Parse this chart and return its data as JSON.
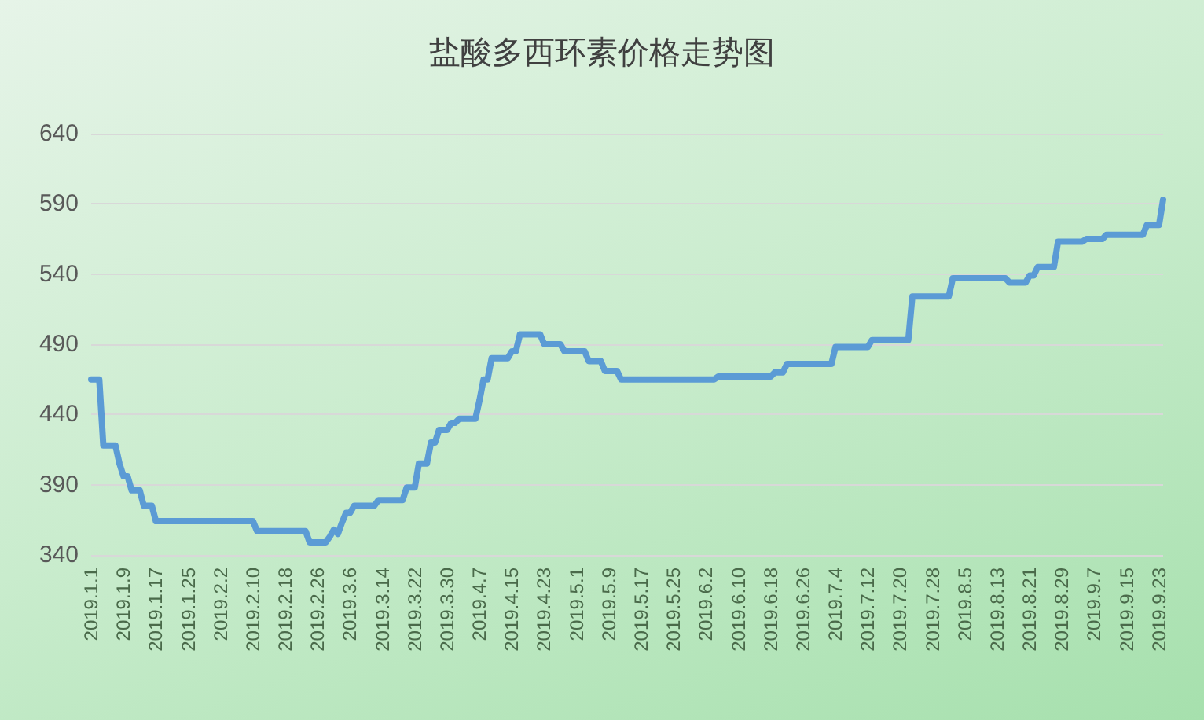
{
  "chart_data": {
    "type": "line",
    "title": "盐酸多西环素价格走势图",
    "categories": [
      "2019.1.1",
      null,
      null,
      null,
      null,
      null,
      null,
      null,
      "2019.1.9",
      null,
      null,
      null,
      null,
      null,
      null,
      null,
      "2019.1.17",
      null,
      null,
      null,
      null,
      null,
      null,
      null,
      "2019.1.25",
      null,
      null,
      null,
      null,
      null,
      null,
      null,
      "2019.2.2",
      null,
      null,
      null,
      null,
      null,
      null,
      null,
      "2019.2.10",
      null,
      null,
      null,
      null,
      null,
      null,
      null,
      "2019.2.18",
      null,
      null,
      null,
      null,
      null,
      null,
      null,
      "2019.2.26",
      null,
      null,
      null,
      null,
      null,
      null,
      null,
      "2019.3.6",
      null,
      null,
      null,
      null,
      null,
      null,
      null,
      "2019.3.14",
      null,
      null,
      null,
      null,
      null,
      null,
      null,
      "2019.3.22",
      null,
      null,
      null,
      null,
      null,
      null,
      null,
      "2019.3.30",
      null,
      null,
      null,
      null,
      null,
      null,
      null,
      "2019.4.7",
      null,
      null,
      null,
      null,
      null,
      null,
      null,
      "2019.4.15",
      null,
      null,
      null,
      null,
      null,
      null,
      null,
      "2019.4.23",
      null,
      null,
      null,
      null,
      null,
      null,
      null,
      "2019.5.1",
      null,
      null,
      null,
      null,
      null,
      null,
      null,
      "2019.5.9",
      null,
      null,
      null,
      null,
      null,
      null,
      null,
      "2019.5.17",
      null,
      null,
      null,
      null,
      null,
      null,
      null,
      "2019.5.25",
      null,
      null,
      null,
      null,
      null,
      null,
      null,
      "2019.6.2",
      null,
      null,
      null,
      null,
      null,
      null,
      null,
      "2019.6.10",
      null,
      null,
      null,
      null,
      null,
      null,
      null,
      "2019.6.18",
      null,
      null,
      null,
      null,
      null,
      null,
      null,
      "2019.6.26",
      null,
      null,
      null,
      null,
      null,
      null,
      null,
      "2019.7.4",
      null,
      null,
      null,
      null,
      null,
      null,
      null,
      "2019.7.12",
      null,
      null,
      null,
      null,
      null,
      null,
      null,
      "2019.7.20",
      null,
      null,
      null,
      null,
      null,
      null,
      null,
      "2019.7.28",
      null,
      null,
      null,
      null,
      null,
      null,
      null,
      "2019.8.5",
      null,
      null,
      null,
      null,
      null,
      null,
      null,
      "2019.8.13",
      null,
      null,
      null,
      null,
      null,
      null,
      null,
      "2019.8.21",
      null,
      null,
      null,
      null,
      null,
      null,
      null,
      "2019.8.29",
      null,
      null,
      null,
      null,
      null,
      null,
      null,
      "2019.9.7",
      null,
      null,
      null,
      null,
      null,
      null,
      null,
      "2019.9.15",
      null,
      null,
      null,
      null,
      null,
      null,
      null,
      "2019.9.23",
      null
    ],
    "series": [
      {
        "color": "#5b9bd5",
        "values": [
          465,
          465,
          465,
          418,
          418,
          418,
          418,
          405,
          396,
          396,
          386,
          386,
          386,
          375,
          375,
          375,
          364,
          364,
          364,
          364,
          364,
          364,
          364,
          364,
          364,
          364,
          364,
          364,
          364,
          364,
          364,
          364,
          364,
          364,
          364,
          364,
          364,
          364,
          364,
          364,
          364,
          357,
          357,
          357,
          357,
          357,
          357,
          357,
          357,
          357,
          357,
          357,
          357,
          357,
          349,
          349,
          349,
          349,
          349,
          353,
          358,
          355,
          363,
          370,
          370,
          375,
          375,
          375,
          375,
          375,
          375,
          379,
          379,
          379,
          379,
          379,
          379,
          379,
          388,
          388,
          388,
          405,
          405,
          405,
          420,
          420,
          429,
          429,
          429,
          434,
          434,
          437,
          437,
          437,
          437,
          437,
          450,
          465,
          465,
          480,
          480,
          480,
          480,
          480,
          485,
          485,
          497,
          497,
          497,
          497,
          497,
          497,
          490,
          490,
          490,
          490,
          490,
          485,
          485,
          485,
          485,
          485,
          485,
          478,
          478,
          478,
          478,
          471,
          471,
          471,
          471,
          465,
          465,
          465,
          465,
          465,
          465,
          465,
          465,
          465,
          465,
          465,
          465,
          465,
          465,
          465,
          465,
          465,
          465,
          465,
          465,
          465,
          465,
          465,
          465,
          467,
          467,
          467,
          467,
          467,
          467,
          467,
          467,
          467,
          467,
          467,
          467,
          467,
          467,
          470,
          470,
          470,
          476,
          476,
          476,
          476,
          476,
          476,
          476,
          476,
          476,
          476,
          476,
          476,
          488,
          488,
          488,
          488,
          488,
          488,
          488,
          488,
          488,
          493,
          493,
          493,
          493,
          493,
          493,
          493,
          493,
          493,
          493,
          524,
          524,
          524,
          524,
          524,
          524,
          524,
          524,
          524,
          524,
          537,
          537,
          537,
          537,
          537,
          537,
          537,
          537,
          537,
          537,
          537,
          537,
          537,
          537,
          534,
          534,
          534,
          534,
          534,
          539,
          539,
          545,
          545,
          545,
          545,
          545,
          563,
          563,
          563,
          563,
          563,
          563,
          563,
          565,
          565,
          565,
          565,
          565,
          568,
          568,
          568,
          568,
          568,
          568,
          568,
          568,
          568,
          568,
          575,
          575,
          575,
          575,
          593
        ]
      }
    ],
    "ylim": [
      340,
      640
    ],
    "yticks": [
      340,
      390,
      440,
      490,
      540,
      590,
      640
    ],
    "grid": "y",
    "marker": "none",
    "line_style": "solid"
  }
}
